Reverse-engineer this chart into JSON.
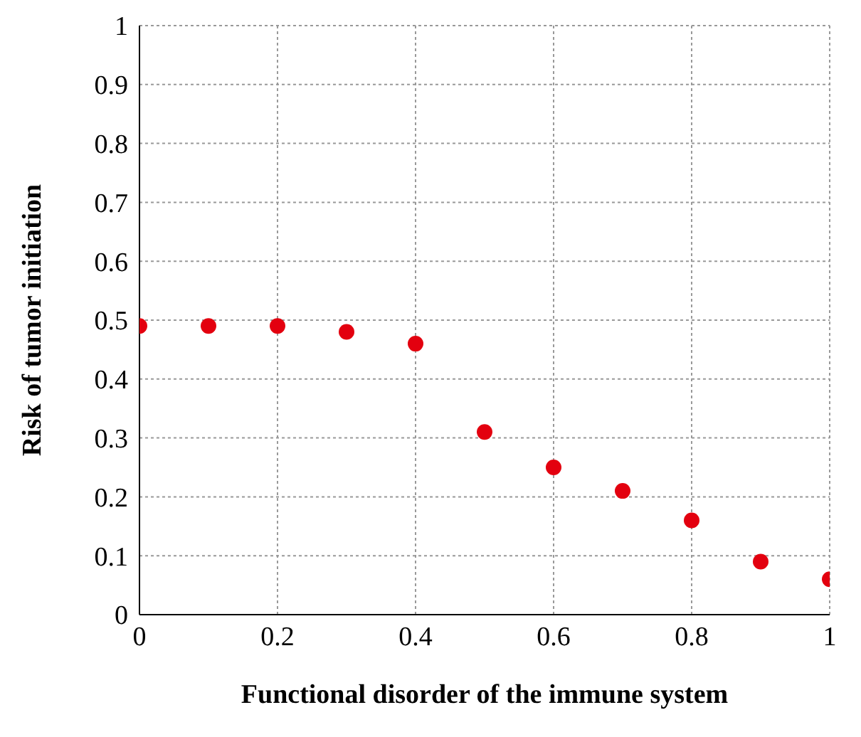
{
  "chart_data": {
    "type": "scatter",
    "xlabel": "Functional disorder of the immune system",
    "ylabel": "Risk of tumor initiation",
    "x": [
      0,
      0.1,
      0.2,
      0.3,
      0.4,
      0.5,
      0.6,
      0.7,
      0.8,
      0.9,
      1
    ],
    "series": [
      {
        "color": "#e3000f",
        "values": [
          0.49,
          0.49,
          0.49,
          0.48,
          0.46,
          0.31,
          0.25,
          0.21,
          0.16,
          0.09,
          0.06
        ]
      }
    ],
    "xlim": [
      0,
      1
    ],
    "xticks": [
      0,
      0.2,
      0.4,
      0.6,
      0.8,
      1
    ],
    "ylim": [
      0,
      1
    ],
    "yticks": [
      0,
      0.1,
      0.2,
      0.3,
      0.4,
      0.5,
      0.6,
      0.7,
      0.8,
      0.9,
      1
    ],
    "grid": true,
    "marker": "circle",
    "legend": false
  }
}
